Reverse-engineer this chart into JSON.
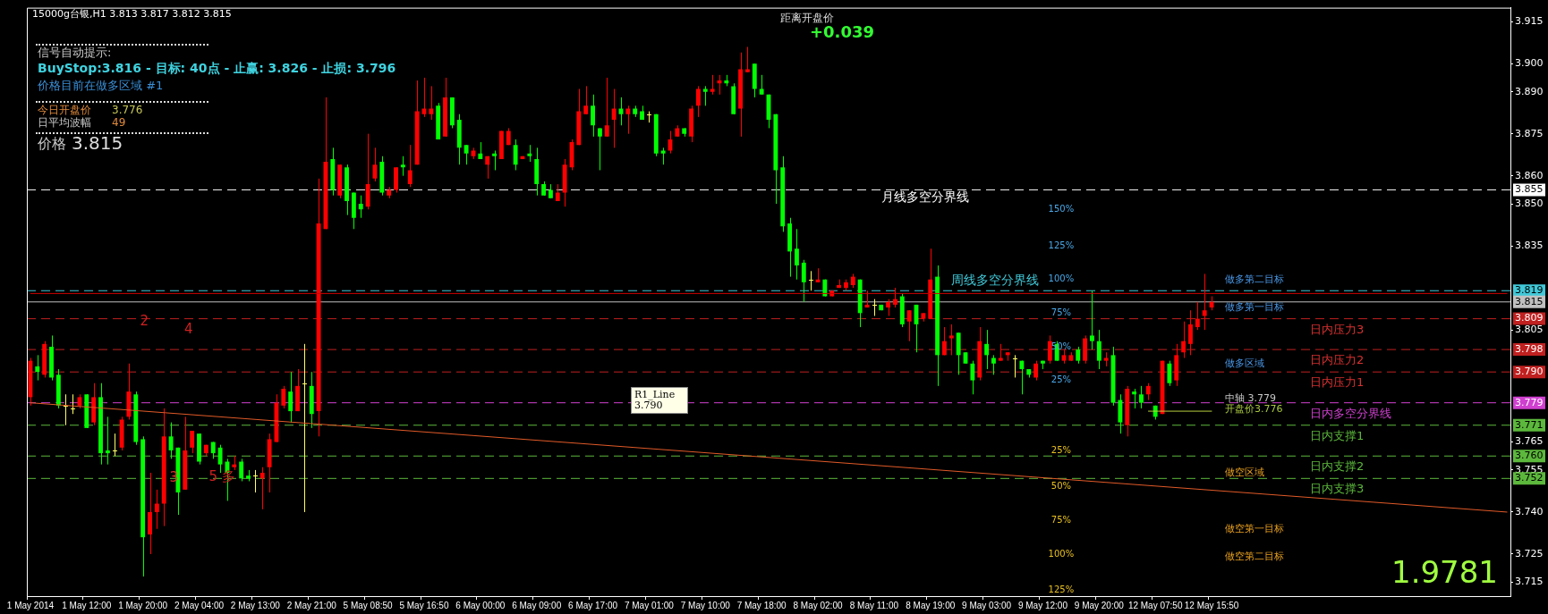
{
  "chart_data": {
    "type": "candlestick",
    "title": "15000g台银,H1 3.813 3.817 3.812 3.815",
    "categories": [
      "1 May 2014",
      null,
      null,
      null,
      null,
      null,
      null,
      null,
      "1 May 12:00",
      null,
      null,
      null,
      null,
      null,
      null,
      null,
      "1 May 20:00",
      null,
      null,
      null,
      null,
      null,
      null,
      null,
      "2 May 04:00",
      null,
      null,
      null,
      null,
      null,
      null,
      null,
      "2 May 13:00",
      null,
      null,
      null,
      null,
      null,
      null,
      null,
      "2 May 21:00",
      null,
      null,
      null,
      null,
      null,
      null,
      null,
      "5 May 08:50",
      null,
      null,
      null,
      null,
      null,
      null,
      null,
      "5 May 16:50",
      null,
      null,
      null,
      null,
      null,
      null,
      null,
      "6 May 00:00",
      null,
      null,
      null,
      null,
      null,
      null,
      null,
      "6 May 09:00",
      null,
      null,
      null,
      null,
      null,
      null,
      null,
      "6 May 17:00",
      null,
      null,
      null,
      null,
      null,
      null,
      null,
      "7 May 01:00",
      null,
      null,
      null,
      null,
      null,
      null,
      null,
      "7 May 10:00",
      null,
      null,
      null,
      null,
      null,
      null,
      null,
      "7 May 18:00",
      null,
      null,
      null,
      null,
      null,
      null,
      null,
      "8 May 02:00",
      null,
      null,
      null,
      null,
      null,
      null,
      null,
      "8 May 11:00",
      null,
      null,
      null,
      null,
      null,
      null,
      null,
      "8 May 19:00",
      null,
      null,
      null,
      null,
      null,
      null,
      null,
      "9 May 03:00",
      null,
      null,
      null,
      null,
      null,
      null,
      null,
      "9 May 12:00",
      null,
      null,
      null,
      null,
      null,
      null,
      null,
      "9 May 20:00",
      null,
      null,
      null,
      null,
      null,
      null,
      null,
      "12 May 07:50",
      null,
      null,
      null,
      null,
      null,
      null,
      null,
      "12 May 15:50",
      null,
      null,
      null,
      null,
      null,
      null,
      null,
      null,
      null,
      null,
      null,
      null,
      null,
      null,
      null,
      null,
      null,
      null,
      null,
      null,
      null,
      null,
      null,
      null,
      null,
      null,
      null,
      null,
      null,
      null,
      null,
      null,
      null,
      null,
      null,
      null,
      null,
      null,
      null,
      null,
      null,
      null
    ],
    "ohlc": [
      [
        3.781,
        3.795,
        3.778,
        3.794
      ],
      [
        3.792,
        3.796,
        3.787,
        3.79
      ],
      [
        3.789,
        3.801,
        3.788,
        3.8
      ],
      [
        3.799,
        3.803,
        3.787,
        3.788
      ],
      [
        3.789,
        3.791,
        3.777,
        3.778
      ],
      [
        3.778,
        3.782,
        3.771,
        3.778
      ],
      [
        3.777,
        3.782,
        3.775,
        3.777
      ],
      [
        3.778,
        3.782,
        3.777,
        3.781
      ],
      [
        3.782,
        3.782,
        3.77,
        3.77
      ],
      [
        3.772,
        3.786,
        3.771,
        3.781
      ],
      [
        3.781,
        3.786,
        3.757,
        3.761
      ],
      [
        3.762,
        3.774,
        3.757,
        3.761
      ],
      [
        3.762,
        3.768,
        3.76,
        3.762
      ],
      [
        3.763,
        3.774,
        3.762,
        3.773
      ],
      [
        3.774,
        3.793,
        3.773,
        3.783
      ],
      [
        3.782,
        3.783,
        3.764,
        3.765
      ],
      [
        3.766,
        3.767,
        3.717,
        3.731
      ],
      [
        3.732,
        3.754,
        3.725,
        3.74
      ],
      [
        3.74,
        3.748,
        3.734,
        3.743
      ],
      [
        3.743,
        3.777,
        3.735,
        3.767
      ],
      [
        3.767,
        3.772,
        3.759,
        3.762
      ],
      [
        3.763,
        3.763,
        3.739,
        3.747
      ],
      [
        3.748,
        3.774,
        3.748,
        3.762
      ],
      [
        3.763,
        3.769,
        3.761,
        3.769
      ],
      [
        3.768,
        3.768,
        3.757,
        3.758
      ],
      [
        3.761,
        3.764,
        3.76,
        3.764
      ],
      [
        3.765,
        3.765,
        3.759,
        3.761
      ],
      [
        3.763,
        3.764,
        3.754,
        3.757
      ],
      [
        3.758,
        3.759,
        3.744,
        3.754
      ],
      [
        3.756,
        3.76,
        3.755,
        3.757
      ],
      [
        3.758,
        3.759,
        3.751,
        3.752
      ],
      [
        3.753,
        3.755,
        3.751,
        3.752
      ],
      [
        3.753,
        3.755,
        3.747,
        3.753
      ],
      [
        3.752,
        3.756,
        3.741,
        3.754
      ],
      [
        3.756,
        3.768,
        3.747,
        3.766
      ],
      [
        3.765,
        3.782,
        3.765,
        3.779
      ],
      [
        3.778,
        3.785,
        3.777,
        3.784
      ],
      [
        3.783,
        3.79,
        3.772,
        3.776
      ],
      [
        3.776,
        3.791,
        3.776,
        3.785
      ],
      [
        3.786,
        3.8,
        3.74,
        3.786
      ],
      [
        3.785,
        3.79,
        3.77,
        3.775
      ],
      [
        3.776,
        3.859,
        3.767,
        3.843
      ],
      [
        3.841,
        3.888,
        3.841,
        3.865
      ],
      [
        3.866,
        3.87,
        3.853,
        3.855
      ],
      [
        3.853,
        3.864,
        3.852,
        3.864
      ],
      [
        3.863,
        3.864,
        3.846,
        3.851
      ],
      [
        3.854,
        3.854,
        3.841,
        3.845
      ],
      [
        3.85,
        3.853,
        3.845,
        3.848
      ],
      [
        3.849,
        3.875,
        3.848,
        3.857
      ],
      [
        3.859,
        3.87,
        3.858,
        3.864
      ],
      [
        3.865,
        3.867,
        3.853,
        3.854
      ],
      [
        3.853,
        3.856,
        3.852,
        3.855
      ],
      [
        3.855,
        3.863,
        3.854,
        3.863
      ],
      [
        3.864,
        3.867,
        3.86,
        3.863
      ],
      [
        3.857,
        3.871,
        3.856,
        3.862
      ],
      [
        3.864,
        3.894,
        3.864,
        3.883
      ],
      [
        3.882,
        3.895,
        3.881,
        3.884
      ],
      [
        3.882,
        3.892,
        3.88,
        3.884
      ],
      [
        3.885,
        3.886,
        3.873,
        3.873
      ],
      [
        3.874,
        3.895,
        3.874,
        3.888
      ],
      [
        3.888,
        3.888,
        3.877,
        3.878
      ],
      [
        3.88,
        3.882,
        3.864,
        3.87
      ],
      [
        3.871,
        3.871,
        3.864,
        3.868
      ],
      [
        3.867,
        3.87,
        3.866,
        3.869
      ],
      [
        3.868,
        3.872,
        3.866,
        3.866
      ],
      [
        3.864,
        3.867,
        3.859,
        3.867
      ],
      [
        3.868,
        3.869,
        3.862,
        3.867
      ],
      [
        3.866,
        3.876,
        3.866,
        3.876
      ],
      [
        3.871,
        3.877,
        3.871,
        3.876
      ],
      [
        3.871,
        3.873,
        3.862,
        3.864
      ],
      [
        3.866,
        3.867,
        3.866,
        3.867
      ],
      [
        3.868,
        3.871,
        3.865,
        3.867
      ],
      [
        3.866,
        3.87,
        3.853,
        3.857
      ],
      [
        3.857,
        3.858,
        3.853,
        3.853
      ],
      [
        3.855,
        3.857,
        3.852,
        3.852
      ],
      [
        3.851,
        3.857,
        3.851,
        3.854
      ],
      [
        3.854,
        3.866,
        3.849,
        3.864
      ],
      [
        3.863,
        3.873,
        3.862,
        3.872
      ],
      [
        3.871,
        3.891,
        3.871,
        3.883
      ],
      [
        3.882,
        3.892,
        3.882,
        3.885
      ],
      [
        3.885,
        3.889,
        3.874,
        3.878
      ],
      [
        3.877,
        3.877,
        3.862,
        3.874
      ],
      [
        3.874,
        3.895,
        3.874,
        3.878
      ],
      [
        3.88,
        3.891,
        3.87,
        3.884
      ],
      [
        3.884,
        3.888,
        3.878,
        3.882
      ],
      [
        3.882,
        3.885,
        3.875,
        3.884
      ],
      [
        3.884,
        3.885,
        3.881,
        3.882
      ],
      [
        3.883,
        3.885,
        3.88,
        3.88
      ],
      [
        3.882,
        3.883,
        3.879,
        3.882
      ],
      [
        3.882,
        3.882,
        3.867,
        3.868
      ],
      [
        3.869,
        3.87,
        3.864,
        3.868
      ],
      [
        3.869,
        3.876,
        3.868,
        3.873
      ],
      [
        3.874,
        3.878,
        3.874,
        3.877
      ],
      [
        3.877,
        3.877,
        3.874,
        3.875
      ],
      [
        3.874,
        3.885,
        3.872,
        3.884
      ],
      [
        3.885,
        3.892,
        3.881,
        3.891
      ],
      [
        3.891,
        3.892,
        3.885,
        3.89
      ],
      [
        3.89,
        3.896,
        3.889,
        3.891
      ],
      [
        3.893,
        3.896,
        3.889,
        3.894
      ],
      [
        3.894,
        3.896,
        3.892,
        3.893
      ],
      [
        3.892,
        3.893,
        3.882,
        3.882
      ],
      [
        3.884,
        3.904,
        3.874,
        3.898
      ],
      [
        3.897,
        3.906,
        3.897,
        3.898
      ],
      [
        3.9,
        3.9,
        3.888,
        3.891
      ],
      [
        3.891,
        3.896,
        3.889,
        3.889
      ],
      [
        3.889,
        3.889,
        3.877,
        3.88
      ],
      [
        3.882,
        3.882,
        3.85,
        3.862
      ],
      [
        3.863,
        3.867,
        3.84,
        3.842
      ],
      [
        3.843,
        3.845,
        3.824,
        3.833
      ],
      [
        3.834,
        3.841,
        3.823,
        3.828
      ],
      [
        3.829,
        3.83,
        3.815,
        3.822
      ],
      [
        3.823,
        3.826,
        3.819,
        3.823
      ],
      [
        3.822,
        3.827,
        3.822,
        3.823
      ],
      [
        3.823,
        3.823,
        3.817,
        3.817
      ],
      [
        3.817,
        3.819,
        3.817,
        3.819
      ],
      [
        3.82,
        3.823,
        3.82,
        3.821
      ],
      [
        3.82,
        3.823,
        3.819,
        3.822
      ],
      [
        3.821,
        3.825,
        3.82,
        3.824
      ],
      [
        3.823,
        3.823,
        3.806,
        3.811
      ],
      [
        3.813,
        3.819,
        3.813,
        3.814
      ],
      [
        3.814,
        3.816,
        3.81,
        3.814
      ],
      [
        3.814,
        3.814,
        3.812,
        3.812
      ],
      [
        3.813,
        3.816,
        3.81,
        3.815
      ],
      [
        3.814,
        3.82,
        3.813,
        3.816
      ],
      [
        3.817,
        3.818,
        3.806,
        3.807
      ],
      [
        3.808,
        3.812,
        3.801,
        3.812
      ],
      [
        3.814,
        3.814,
        3.797,
        3.807
      ],
      [
        3.809,
        3.811,
        3.808,
        3.811
      ],
      [
        3.809,
        3.834,
        3.809,
        3.823
      ],
      [
        3.824,
        3.828,
        3.785,
        3.796
      ],
      [
        3.796,
        3.806,
        3.796,
        3.801
      ],
      [
        3.802,
        3.807,
        3.796,
        3.803
      ],
      [
        3.804,
        3.804,
        3.789,
        3.796
      ],
      [
        3.797,
        3.797,
        3.793,
        3.793
      ],
      [
        3.793,
        3.794,
        3.782,
        3.787
      ],
      [
        3.788,
        3.806,
        3.787,
        3.801
      ],
      [
        3.8,
        3.805,
        3.791,
        3.796
      ],
      [
        3.795,
        3.796,
        3.789,
        3.793
      ],
      [
        3.794,
        3.8,
        3.794,
        3.795
      ],
      [
        3.796,
        3.797,
        3.794,
        3.797
      ],
      [
        3.795,
        3.796,
        3.788,
        3.795
      ],
      [
        3.794,
        3.794,
        3.782,
        3.791
      ],
      [
        3.791,
        3.791,
        3.788,
        3.789
      ],
      [
        3.788,
        3.794,
        3.787,
        3.793
      ],
      [
        3.794,
        3.794,
        3.791,
        3.793
      ],
      [
        3.794,
        3.803,
        3.793,
        3.801
      ],
      [
        3.8,
        3.801,
        3.794,
        3.794
      ],
      [
        3.794,
        3.798,
        3.793,
        3.796
      ],
      [
        3.794,
        3.797,
        3.794,
        3.796
      ],
      [
        3.798,
        3.799,
        3.793,
        3.794
      ],
      [
        3.794,
        3.803,
        3.793,
        3.802
      ],
      [
        3.803,
        3.819,
        3.798,
        3.801
      ],
      [
        3.801,
        3.805,
        3.791,
        3.794
      ],
      [
        3.794,
        3.797,
        3.792,
        3.795
      ],
      [
        3.796,
        3.799,
        3.778,
        3.779
      ],
      [
        3.78,
        3.782,
        3.768,
        3.772
      ],
      [
        3.771,
        3.785,
        3.767,
        3.784
      ],
      [
        3.783,
        3.784,
        3.777,
        3.782
      ],
      [
        3.782,
        3.785,
        3.777,
        3.779
      ],
      [
        3.782,
        3.786,
        3.78,
        3.785
      ],
      [
        3.778,
        3.778,
        3.773,
        3.774
      ],
      [
        3.775,
        3.794,
        3.775,
        3.794
      ],
      [
        3.793,
        3.794,
        3.785,
        3.786
      ],
      [
        3.787,
        3.8,
        3.785,
        3.796
      ],
      [
        3.797,
        3.808,
        3.795,
        3.801
      ],
      [
        3.8,
        3.812,
        3.796,
        3.807
      ],
      [
        3.806,
        3.815,
        3.805,
        3.809
      ],
      [
        3.81,
        3.825,
        3.805,
        3.812
      ],
      [
        3.813,
        3.817,
        3.812,
        3.815
      ],
      null,
      null,
      null,
      null,
      null,
      null,
      null,
      null,
      null,
      null,
      null,
      null,
      null,
      null,
      null,
      null,
      null,
      null,
      null,
      null,
      null,
      null,
      null,
      null,
      null,
      null,
      null,
      null,
      null,
      null,
      null,
      null,
      null,
      null,
      null,
      null,
      null,
      null,
      null,
      null,
      null,
      null
    ],
    "series": [
      {
        "type": "line",
        "color": "#e05a28",
        "values": [
          3.779,
          null,
          null,
          null,
          null,
          null,
          null,
          null,
          null,
          null,
          null,
          null,
          null,
          null,
          null,
          null,
          null,
          null,
          null,
          null,
          null,
          null,
          null,
          null,
          null,
          null,
          null,
          null,
          null,
          null,
          null,
          null,
          null,
          null,
          null,
          null,
          null,
          null,
          null,
          null,
          null,
          null,
          null,
          null,
          null,
          null,
          null,
          null,
          null,
          null,
          null,
          null,
          null,
          null,
          null,
          null,
          null,
          null,
          null,
          null,
          null,
          null,
          null,
          null,
          null,
          null,
          null,
          null,
          null,
          null,
          null,
          null,
          null,
          null,
          null,
          null,
          null,
          null,
          null,
          null,
          null,
          null,
          null,
          null,
          null,
          null,
          null,
          null,
          null,
          null,
          null,
          null,
          null,
          null,
          null,
          null,
          null,
          null,
          null,
          null,
          null,
          null,
          null,
          null,
          null,
          null,
          null,
          null,
          null,
          null,
          null,
          null,
          null,
          null,
          null,
          null,
          null,
          null,
          null,
          null,
          null,
          null,
          null,
          null,
          null,
          null,
          null,
          null,
          null,
          null,
          null,
          null,
          null,
          null,
          null,
          null,
          null,
          null,
          null,
          null,
          null,
          null,
          null,
          null,
          null,
          null,
          null,
          null,
          null,
          null,
          null,
          null,
          null,
          null,
          null,
          null,
          null,
          null,
          null,
          null,
          null,
          null,
          null,
          null,
          null,
          null,
          null,
          null,
          null,
          null,
          null,
          null,
          null,
          null,
          null,
          null,
          null,
          null,
          null,
          null,
          null,
          null,
          null,
          null,
          null,
          null,
          null,
          null,
          null,
          null,
          null,
          null,
          null,
          null,
          null,
          null,
          null,
          null,
          null,
          null,
          null,
          null,
          null,
          null,
          null,
          null,
          null,
          null,
          null,
          null,
          3.74
        ]
      },
      {
        "type": "line",
        "color": "#cc0000",
        "values": [
          3.818,
          null,
          null,
          null,
          null,
          null,
          null,
          null,
          null,
          null,
          null,
          null,
          null,
          null,
          null,
          null,
          null,
          null,
          null,
          null,
          null,
          null,
          null,
          null,
          null,
          null,
          null,
          null,
          null,
          null,
          null,
          null,
          null,
          null,
          null,
          null,
          null,
          null,
          null,
          null,
          null,
          null,
          null,
          null,
          null,
          null,
          null,
          null,
          null,
          null,
          null,
          null,
          null,
          null,
          null,
          null,
          null,
          null,
          null,
          null,
          null,
          null,
          null,
          null,
          null,
          null,
          null,
          null,
          null,
          null,
          null,
          null,
          null,
          null,
          null,
          null,
          null,
          null,
          null,
          null,
          null,
          null,
          null,
          null,
          null,
          null,
          null,
          null,
          null,
          null,
          null,
          null,
          null,
          null,
          null,
          null,
          null,
          null,
          null,
          null,
          null,
          null,
          null,
          null,
          null,
          null,
          null,
          null,
          null,
          null,
          null,
          null,
          null,
          null,
          null,
          null,
          null,
          null,
          null,
          null,
          null,
          null,
          null,
          null,
          null,
          null,
          null,
          null,
          null,
          null,
          null,
          null,
          null,
          null,
          null,
          null,
          null,
          null,
          null,
          null,
          null,
          null,
          null,
          null,
          null,
          null,
          null,
          null,
          null,
          null,
          null,
          null,
          null,
          null,
          null,
          null,
          null,
          null,
          null,
          null,
          null,
          null,
          null,
          null,
          null,
          null,
          null,
          null,
          null,
          null,
          null,
          null,
          null,
          null,
          null,
          null,
          null,
          null,
          null,
          null,
          null,
          null,
          null,
          null,
          null,
          null,
          null,
          null,
          null,
          null,
          null,
          null,
          null,
          null,
          null,
          null,
          null,
          null,
          null,
          null,
          null,
          null,
          null,
          null,
          null,
          null,
          null,
          null,
          null,
          null,
          3.818
        ]
      },
      {
        "type": "line",
        "color": "#b8d040",
        "values": [
          null,
          null,
          null,
          null,
          null,
          null,
          null,
          null,
          null,
          null,
          null,
          null,
          null,
          null,
          null,
          null,
          null,
          null,
          null,
          null,
          null,
          null,
          null,
          null,
          null,
          null,
          null,
          null,
          null,
          null,
          null,
          null,
          null,
          null,
          null,
          null,
          null,
          null,
          null,
          null,
          null,
          null,
          null,
          null,
          null,
          null,
          null,
          null,
          null,
          null,
          null,
          null,
          null,
          null,
          null,
          null,
          null,
          null,
          null,
          null,
          null,
          null,
          null,
          null,
          null,
          null,
          null,
          null,
          null,
          null,
          null,
          null,
          null,
          null,
          null,
          null,
          null,
          null,
          null,
          null,
          null,
          null,
          null,
          null,
          null,
          null,
          null,
          null,
          null,
          null,
          null,
          null,
          null,
          null,
          null,
          null,
          null,
          null,
          null,
          null,
          null,
          null,
          null,
          null,
          null,
          null,
          null,
          null,
          null,
          null,
          null,
          null,
          null,
          null,
          null,
          null,
          null,
          null,
          null,
          null,
          null,
          null,
          null,
          null,
          null,
          null,
          null,
          null,
          null,
          null,
          null,
          null,
          null,
          null,
          null,
          null,
          null,
          null,
          null,
          null,
          null,
          null,
          null,
          null,
          null,
          null,
          null,
          null,
          null,
          null,
          null,
          null,
          null,
          null,
          null,
          null,
          null,
          null,
          null,
          3.776,
          null,
          null,
          null,
          null,
          null,
          null,
          null,
          null,
          3.776,
          null,
          null,
          null,
          null,
          null,
          null,
          null,
          null,
          null,
          null,
          null,
          null,
          null,
          null,
          null,
          null,
          null,
          null,
          null,
          null,
          null,
          null,
          null,
          null,
          null,
          null,
          null,
          null,
          null,
          null,
          null,
          null,
          null,
          null,
          null,
          null,
          null,
          null,
          null,
          null,
          null,
          null
        ]
      }
    ],
    "ylim": [
      3.71,
      3.92
    ],
    "yticks": [
      3.915,
      {
        "value": 3.9,
        "label": "3.900"
      },
      {
        "value": 3.89,
        "label": "3.890"
      },
      3.875,
      {
        "value": 3.86,
        "label": "3.860"
      },
      {
        "value": 3.85,
        "label": "3.850"
      },
      3.835,
      3.805,
      3.765,
      3.755,
      {
        "value": 3.74,
        "label": "3.740"
      },
      3.725,
      3.715
    ],
    "ref_lines": [
      {
        "axis": "y",
        "value": 3.855,
        "label": "3.855",
        "color": "#ffffff",
        "line_style": "dashed"
      },
      {
        "axis": "y",
        "value": 3.819,
        "label": "3.819",
        "color": "#40c8d8",
        "line_style": "dashed"
      },
      {
        "axis": "y",
        "value": 3.815,
        "label": "3.815",
        "color": "#c0c0c0",
        "line_style": "solid"
      },
      {
        "axis": "y",
        "value": 3.809,
        "label": "3.809",
        "color": "#c02020",
        "line_style": "dashed"
      },
      {
        "axis": "y",
        "value": 3.798,
        "label": "3.798",
        "color": "#c02020",
        "line_style": "dashed"
      },
      {
        "axis": "y",
        "value": 3.79,
        "label": "3.790",
        "color": "#c02020",
        "line_style": "dashed"
      },
      {
        "axis": "y",
        "value": 3.779,
        "label": "3.779",
        "color": "#d040d0",
        "line_style": "dashed"
      },
      {
        "axis": "y",
        "value": 3.771,
        "label": "3.771",
        "color": "#5cb83c",
        "line_style": "dashed"
      },
      {
        "axis": "y",
        "value": 3.76,
        "label": "3.760",
        "color": "#5cb83c",
        "line_style": "dashed"
      },
      {
        "axis": "y",
        "value": 3.752,
        "label": "3.752",
        "color": "#5cb83c",
        "line_style": "dashed"
      }
    ],
    "annotations": [
      "信号自动提示:",
      "BuyStop:3.816 - 目标: 40点 - 止赢: 3.826 - 止损: 3.796",
      "价格目前在做多区域 #1",
      "今日开盘价",
      "3.776",
      "日平均波幅",
      "49",
      "价格",
      "3.815",
      "距离开盘价",
      "+0.039",
      "1.9781",
      "R1_Line 3.790",
      "2",
      "4",
      "3",
      "5 多",
      "150%",
      "125%",
      "100%",
      "75%",
      "50%",
      "25%",
      "25%",
      "50%",
      "75%",
      "100%",
      "125%",
      "做多第二目标",
      "做多第一目标",
      "做多区域",
      "中轴 3.779",
      "开盘价3.776",
      "做空区域",
      "做空第一目标",
      "做空第二目标",
      "月线多空分界线",
      "周线多空分界线",
      "日内压力3",
      "日内压力2",
      "日内压力1",
      "日内多空分界线",
      "日内支撑1",
      "日内支撑2",
      "日内支撑3"
    ],
    "legend": false
  }
}
